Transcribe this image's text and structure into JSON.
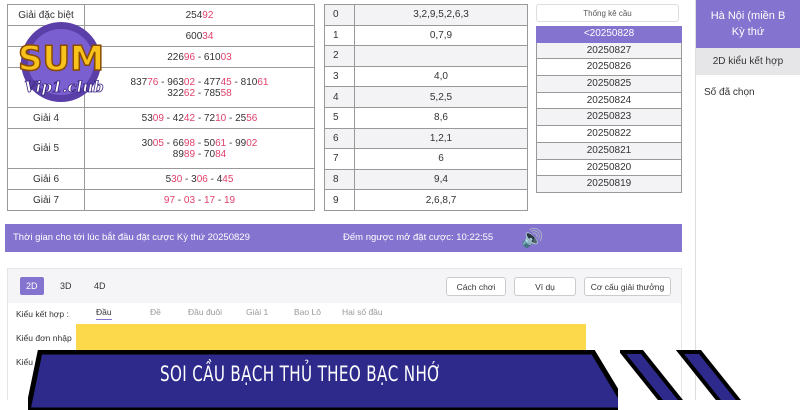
{
  "prize_table": [
    {
      "label": "Giải đặc biệt",
      "lines": [
        [
          [
            "254",
            ""
          ],
          [
            "92",
            "r"
          ]
        ]
      ]
    },
    {
      "label": "",
      "lines": [
        [
          [
            "600",
            ""
          ],
          [
            "34",
            "r"
          ]
        ]
      ]
    },
    {
      "label": "",
      "lines": [
        [
          [
            "226",
            ""
          ],
          [
            "96",
            "r"
          ],
          [
            " - 610",
            ""
          ],
          [
            "03",
            "r"
          ]
        ]
      ]
    },
    {
      "label": "",
      "lines": [
        [
          [
            "837",
            ""
          ],
          [
            "76",
            "r"
          ],
          [
            " - 963",
            ""
          ],
          [
            "02",
            "r"
          ],
          [
            " - 477",
            ""
          ],
          [
            "45",
            "r"
          ],
          [
            " - 810",
            ""
          ],
          [
            "61",
            "r"
          ]
        ],
        [
          [
            "322",
            ""
          ],
          [
            "62",
            "r"
          ],
          [
            " - 785",
            ""
          ],
          [
            "58",
            "r"
          ]
        ]
      ]
    },
    {
      "label": "Giải 4",
      "lines": [
        [
          [
            "53",
            ""
          ],
          [
            "09",
            "r"
          ],
          [
            " - 42",
            ""
          ],
          [
            "42",
            "r"
          ],
          [
            " - 72",
            ""
          ],
          [
            "10",
            "r"
          ],
          [
            " - 25",
            ""
          ],
          [
            "56",
            "r"
          ]
        ]
      ]
    },
    {
      "label": "Giải 5",
      "lines": [
        [
          [
            "30",
            ""
          ],
          [
            "05",
            "r"
          ],
          [
            " - 66",
            ""
          ],
          [
            "98",
            "r"
          ],
          [
            " - 50",
            ""
          ],
          [
            "61",
            "r"
          ],
          [
            " - 99",
            ""
          ],
          [
            "02",
            "r"
          ]
        ],
        [
          [
            "89",
            ""
          ],
          [
            "89",
            "r"
          ],
          [
            " - 70",
            ""
          ],
          [
            "84",
            "r"
          ]
        ]
      ]
    },
    {
      "label": "Giải 6",
      "lines": [
        [
          [
            "5",
            ""
          ],
          [
            "30",
            "r"
          ],
          [
            " - 3",
            ""
          ],
          [
            "06",
            "r"
          ],
          [
            " - 4",
            ""
          ],
          [
            "45",
            "r"
          ]
        ]
      ]
    },
    {
      "label": "Giải 7",
      "lines": [
        [
          [
            "97",
            "r"
          ],
          [
            " - ",
            ""
          ],
          [
            "03",
            "r"
          ],
          [
            " - ",
            ""
          ],
          [
            "17",
            "r"
          ],
          [
            " - ",
            ""
          ],
          [
            "19",
            "r"
          ]
        ]
      ]
    }
  ],
  "heads_table": [
    {
      "k": "0",
      "v": "3,2,9,5,2,6,3"
    },
    {
      "k": "1",
      "v": "0,7,9"
    },
    {
      "k": "2",
      "v": ""
    },
    {
      "k": "3",
      "v": "4,0"
    },
    {
      "k": "4",
      "v": "5,2,5"
    },
    {
      "k": "5",
      "v": "8,6"
    },
    {
      "k": "6",
      "v": "1,2,1"
    },
    {
      "k": "7",
      "v": "6"
    },
    {
      "k": "8",
      "v": "9,4"
    },
    {
      "k": "9",
      "v": "2,6,8,7"
    }
  ],
  "stats": {
    "button": "Thống kê cầu",
    "dates": [
      "<20250828",
      "20250827",
      "20250826",
      "20250825",
      "20250824",
      "20250823",
      "20250822",
      "20250821",
      "20250820",
      "20250819"
    ]
  },
  "right": {
    "title": "Hà Nội (miền B",
    "subtitle": "Kỳ thứ",
    "combo": "2D kiểu kết hợp",
    "selected": "Số đã chọn"
  },
  "bar": {
    "text": "Thời gian cho tới lúc bắt đầu đặt cược Kỳ thứ 20250829",
    "countdown": "Đếm ngược mở đặt cược: 10:22:55",
    "icon": "speaker-icon"
  },
  "lower": {
    "tabs": [
      "2D",
      "3D",
      "4D"
    ],
    "buttons": [
      "Cách chơi",
      "Ví dụ",
      "Cơ cấu giải thưởng"
    ],
    "combo_label": "Kiểu kết hợp :",
    "subtabs": [
      "Đầu",
      "Đề",
      "Đầu đuôi",
      "Giải 1",
      "Bao Lô",
      "Hai số đầu"
    ],
    "single_label": "Kiểu đơn nhập",
    "other_label": "Kiểu đ"
  },
  "banner": {
    "title": "SOI CẦU BẠCH THỦ THEO BẠC NHỚ",
    "color": "#2e2a8c"
  },
  "logo": {
    "text": "SUM Vip1.club"
  },
  "colors": {
    "accent": "#8473cf",
    "red": "#e0416b",
    "yellow": "#fbd94a"
  }
}
